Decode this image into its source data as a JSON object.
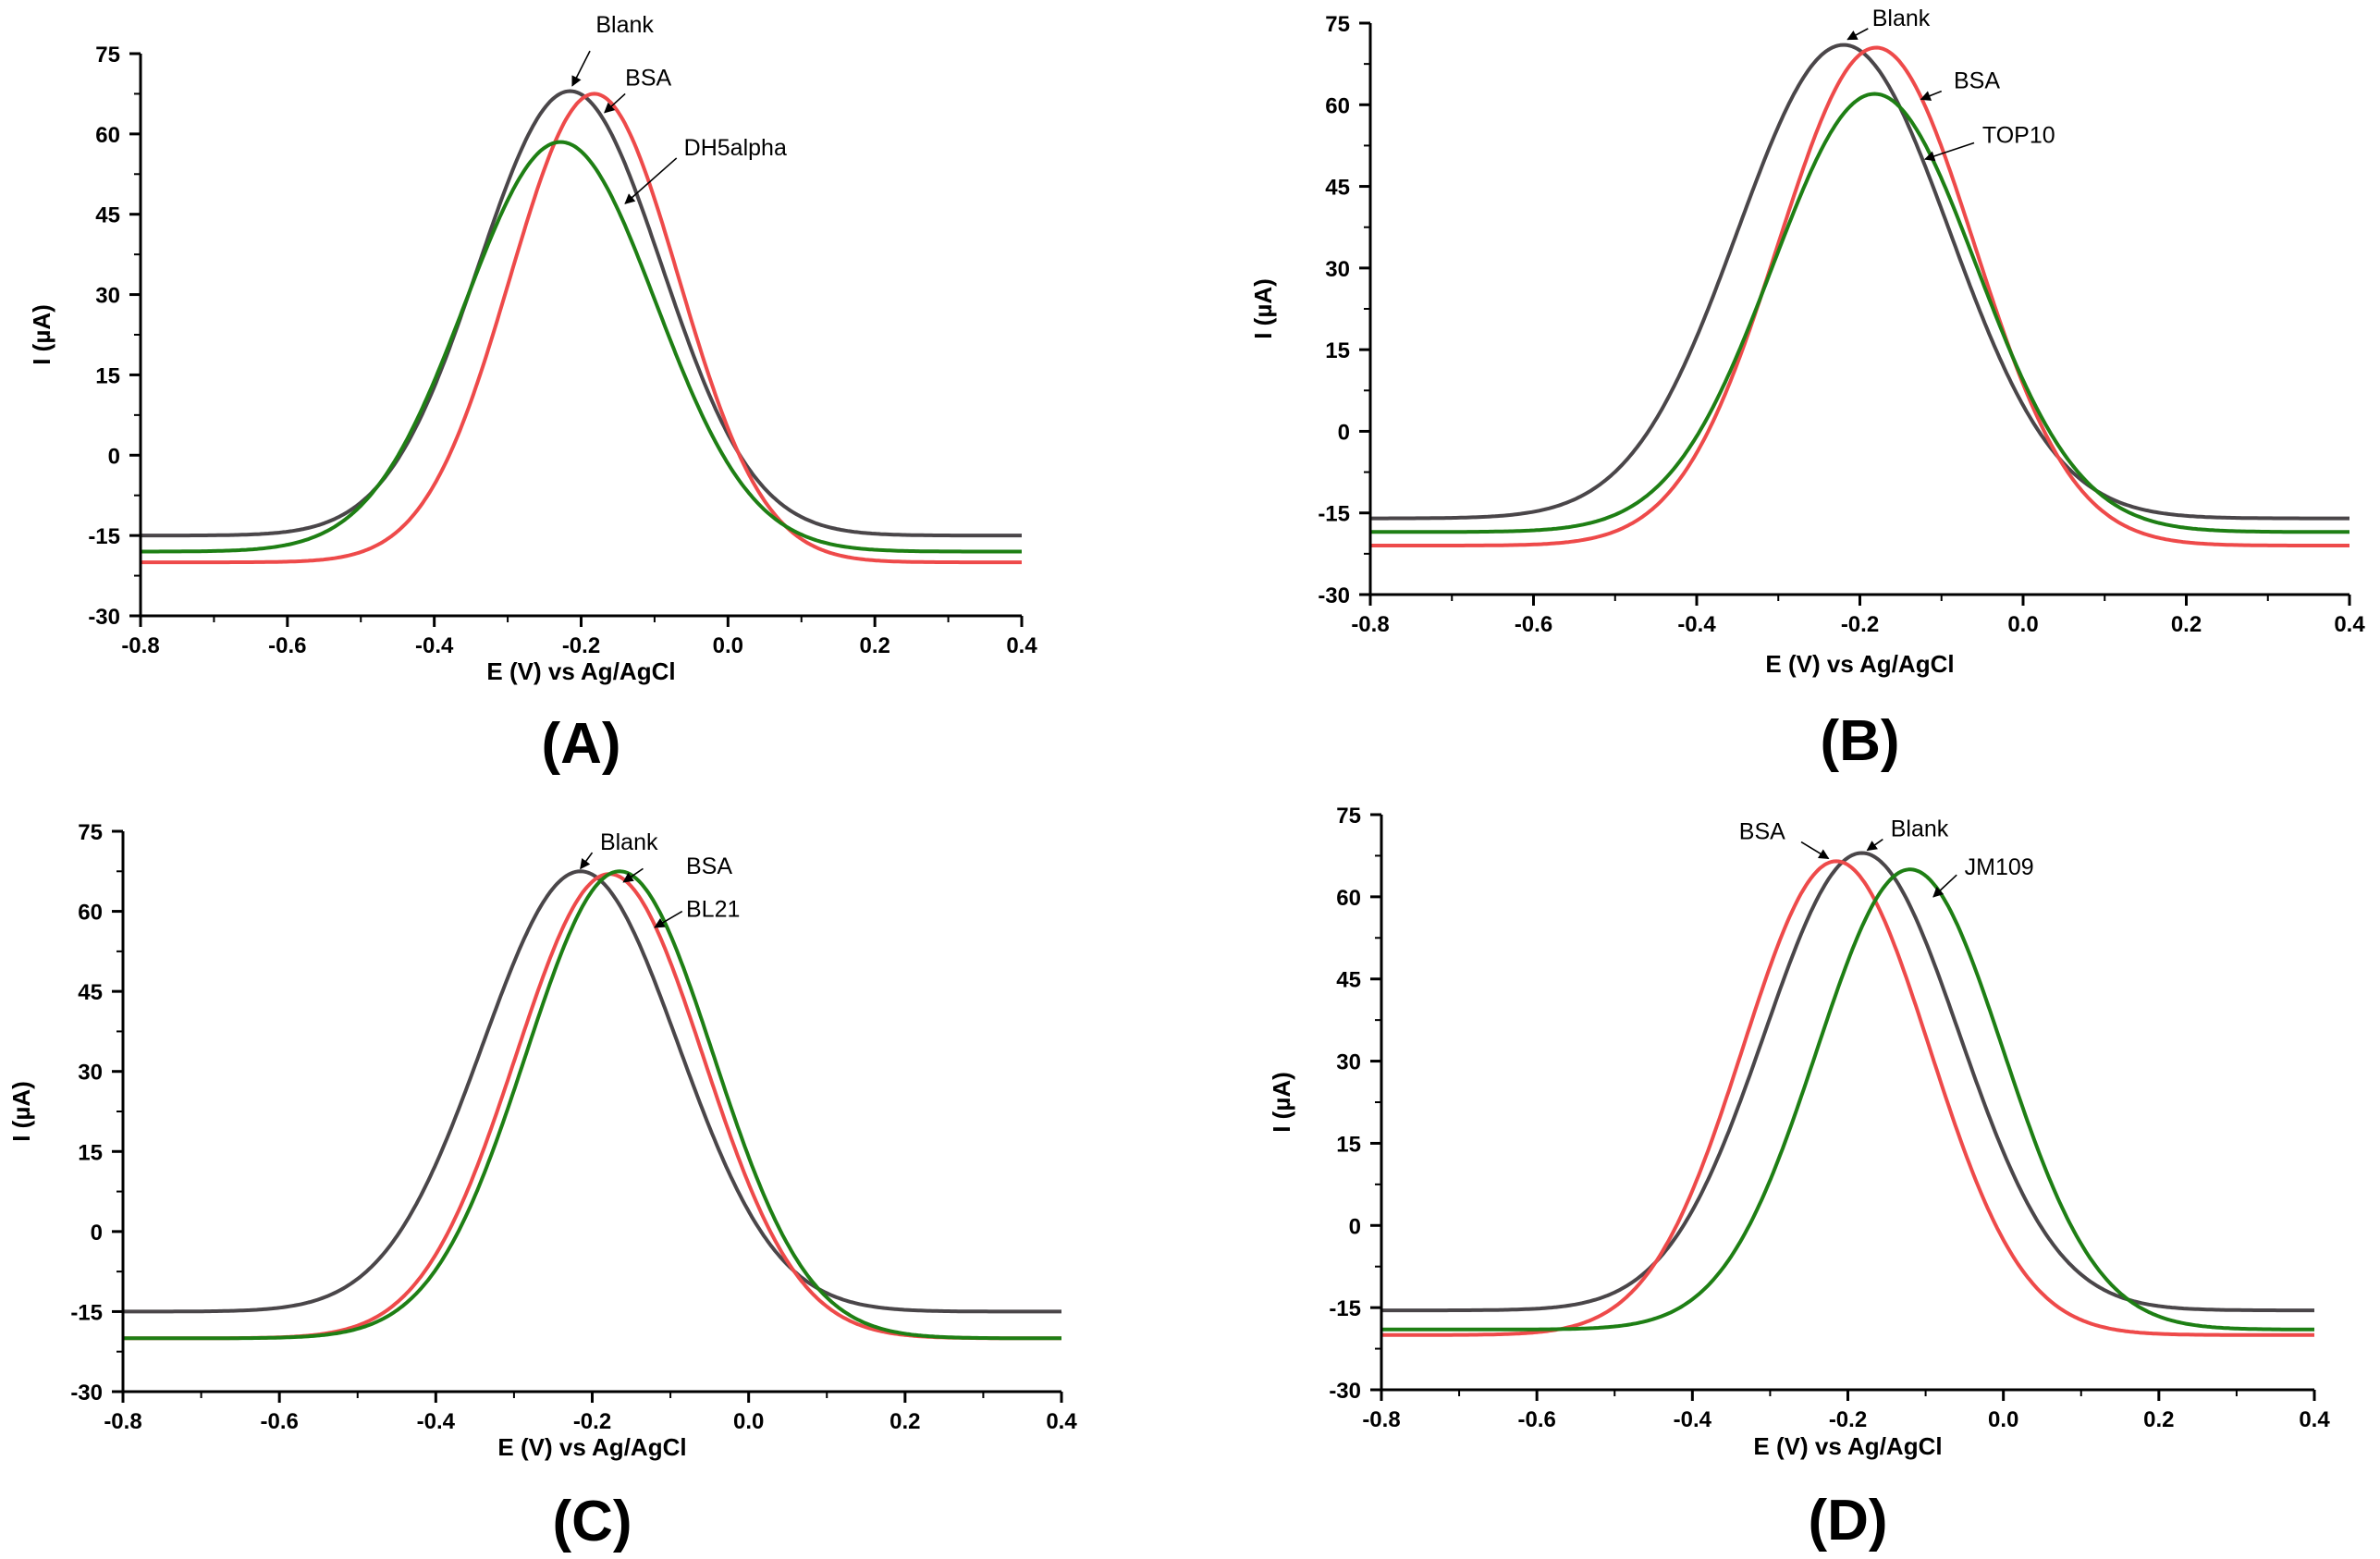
{
  "colors": {
    "blank": "#4a4649",
    "bsa": "#ee4a4a",
    "bacteria": "#1e7f14",
    "axis": "#000000"
  },
  "chart_data": [
    {
      "type": "line",
      "panel_label": "(A)",
      "xlabel": "E (V) vs Ag/AgCl",
      "ylabel": "I (µA)",
      "xlim": [
        -0.8,
        0.4
      ],
      "ylim": [
        -30,
        75
      ],
      "xticks": [
        -0.8,
        -0.6,
        -0.4,
        -0.2,
        0.0,
        0.2,
        0.4
      ],
      "xtick_labels": [
        "-0.8",
        "-0.6",
        "-0.4",
        "-0.2",
        "0.0",
        "0.2",
        "0.4"
      ],
      "yticks": [
        -30,
        -15,
        0,
        15,
        30,
        45,
        60,
        75
      ],
      "ytick_labels": [
        "-30",
        "-15",
        "0",
        "15",
        "30",
        "45",
        "60",
        "75"
      ],
      "series": [
        {
          "name": "Blank",
          "color_key": "blank",
          "peak_x": -0.215,
          "peak_y": 68,
          "baseline_left": -15,
          "baseline_right": -15,
          "sigma": 0.125,
          "label_text": "Blank",
          "label_at": [
            -0.18,
            79
          ],
          "arrow_from": [
            -0.188,
            75.5
          ],
          "arrow_to": [
            -0.212,
            69
          ]
        },
        {
          "name": "BSA",
          "color_key": "bsa",
          "peak_x": -0.182,
          "peak_y": 67.5,
          "baseline_left": -20,
          "baseline_right": -20,
          "sigma": 0.115,
          "label_text": "BSA",
          "label_at": [
            -0.14,
            69
          ],
          "arrow_from": [
            -0.14,
            67.5
          ],
          "arrow_to": [
            -0.168,
            64
          ]
        },
        {
          "name": "DH5alpha",
          "color_key": "bacteria",
          "peak_x": -0.228,
          "peak_y": 58.5,
          "baseline_left": -18,
          "baseline_right": -18,
          "sigma": 0.13,
          "label_text": "DH5alpha",
          "label_at": [
            -0.06,
            56
          ],
          "arrow_from": [
            -0.07,
            55.5
          ],
          "arrow_to": [
            -0.14,
            47
          ]
        }
      ]
    },
    {
      "type": "line",
      "panel_label": "(B)",
      "xlabel": "E (V) vs Ag/AgCl",
      "ylabel": "I (µA)",
      "xlim": [
        -0.8,
        0.4
      ],
      "ylim": [
        -30,
        75
      ],
      "xticks": [
        -0.8,
        -0.6,
        -0.4,
        -0.2,
        0.0,
        0.2,
        0.4
      ],
      "xtick_labels": [
        "-0.8",
        "-0.6",
        "-0.4",
        "-0.2",
        "0.0",
        "0.2",
        "0.4"
      ],
      "yticks": [
        -30,
        -15,
        0,
        15,
        30,
        45,
        60,
        75
      ],
      "ytick_labels": [
        "-30",
        "-15",
        "0",
        "15",
        "30",
        "45",
        "60",
        "75"
      ],
      "series": [
        {
          "name": "Blank",
          "color_key": "blank",
          "peak_x": -0.22,
          "peak_y": 71,
          "baseline_left": -16,
          "baseline_right": -16,
          "sigma": 0.13,
          "label_text": "Blank",
          "label_at": [
            -0.185,
            74.5
          ],
          "arrow_from": [
            -0.19,
            74
          ],
          "arrow_to": [
            -0.215,
            72
          ]
        },
        {
          "name": "BSA",
          "color_key": "bsa",
          "peak_x": -0.18,
          "peak_y": 70.5,
          "baseline_left": -21,
          "baseline_right": -21,
          "sigma": 0.12,
          "label_text": "BSA",
          "label_at": [
            -0.085,
            63
          ],
          "arrow_from": [
            -0.1,
            62.5
          ],
          "arrow_to": [
            -0.125,
            61
          ]
        },
        {
          "name": "TOP10",
          "color_key": "bacteria",
          "peak_x": -0.182,
          "peak_y": 62,
          "baseline_left": -18.5,
          "baseline_right": -18.5,
          "sigma": 0.125,
          "label_text": "TOP10",
          "label_at": [
            -0.05,
            53
          ],
          "arrow_from": [
            -0.06,
            53
          ],
          "arrow_to": [
            -0.12,
            50
          ]
        }
      ]
    },
    {
      "type": "line",
      "panel_label": "(C)",
      "xlabel": "E (V) vs Ag/AgCl",
      "ylabel": "I (µA)",
      "xlim": [
        -0.8,
        0.4
      ],
      "ylim": [
        -30,
        75
      ],
      "xticks": [
        -0.8,
        -0.6,
        -0.4,
        -0.2,
        0.0,
        0.2,
        0.4
      ],
      "xtick_labels": [
        "-0.8",
        "-0.6",
        "-0.4",
        "-0.2",
        "0.0",
        "0.2",
        "0.4"
      ],
      "yticks": [
        -30,
        -15,
        0,
        15,
        30,
        45,
        60,
        75
      ],
      "ytick_labels": [
        "-30",
        "-15",
        "0",
        "15",
        "30",
        "45",
        "60",
        "75"
      ],
      "series": [
        {
          "name": "Blank",
          "color_key": "blank",
          "peak_x": -0.215,
          "peak_y": 67.5,
          "baseline_left": -15,
          "baseline_right": -15,
          "sigma": 0.125,
          "label_text": "Blank",
          "label_at": [
            -0.19,
            71.5
          ],
          "arrow_from": [
            -0.2,
            71
          ],
          "arrow_to": [
            -0.215,
            68
          ]
        },
        {
          "name": "BSA",
          "color_key": "bsa",
          "peak_x": -0.178,
          "peak_y": 67,
          "baseline_left": -20,
          "baseline_right": -20,
          "sigma": 0.12,
          "label_text": "BSA",
          "label_at": [
            -0.08,
            67
          ],
          "arrow_from": [
            -0.135,
            68
          ],
          "arrow_to": [
            -0.16,
            65.5
          ]
        },
        {
          "name": "BL21",
          "color_key": "bacteria",
          "peak_x": -0.165,
          "peak_y": 67.5,
          "baseline_left": -20,
          "baseline_right": -20,
          "sigma": 0.12,
          "label_text": "BL21",
          "label_at": [
            -0.08,
            59
          ],
          "arrow_from": [
            -0.085,
            60
          ],
          "arrow_to": [
            -0.12,
            57
          ]
        }
      ]
    },
    {
      "type": "line",
      "panel_label": "(D)",
      "xlabel": "E (V) vs Ag/AgCl",
      "ylabel": "I (µA)",
      "xlim": [
        -0.8,
        0.4
      ],
      "ylim": [
        -30,
        75
      ],
      "xticks": [
        -0.8,
        -0.6,
        -0.4,
        -0.2,
        0.0,
        0.2,
        0.4
      ],
      "xtick_labels": [
        "-0.8",
        "-0.6",
        "-0.4",
        "-0.2",
        "0.0",
        "0.2",
        "0.4"
      ],
      "yticks": [
        -30,
        -15,
        0,
        15,
        30,
        45,
        60,
        75
      ],
      "ytick_labels": [
        "-30",
        "-15",
        "0",
        "15",
        "30",
        "45",
        "60",
        "75"
      ],
      "series": [
        {
          "name": "Blank",
          "color_key": "blank",
          "peak_x": -0.182,
          "peak_y": 68,
          "baseline_left": -15.5,
          "baseline_right": -15.5,
          "sigma": 0.125,
          "label_text": "Blank",
          "label_at": [
            -0.145,
            71
          ],
          "arrow_from": [
            -0.155,
            70.5
          ],
          "arrow_to": [
            -0.175,
            68.5
          ]
        },
        {
          "name": "BSA",
          "color_key": "bsa",
          "peak_x": -0.215,
          "peak_y": 66.5,
          "baseline_left": -20,
          "baseline_right": -20,
          "sigma": 0.12,
          "label_text": "BSA",
          "label_at": [
            -0.34,
            70.5
          ],
          "arrow_from": [
            -0.26,
            70
          ],
          "arrow_to": [
            -0.225,
            67
          ]
        },
        {
          "name": "JM109",
          "color_key": "bacteria",
          "peak_x": -0.12,
          "peak_y": 65,
          "baseline_left": -19,
          "baseline_right": -19,
          "sigma": 0.12,
          "label_text": "JM109",
          "label_at": [
            -0.05,
            64
          ],
          "arrow_from": [
            -0.06,
            64
          ],
          "arrow_to": [
            -0.09,
            60
          ]
        }
      ]
    }
  ]
}
